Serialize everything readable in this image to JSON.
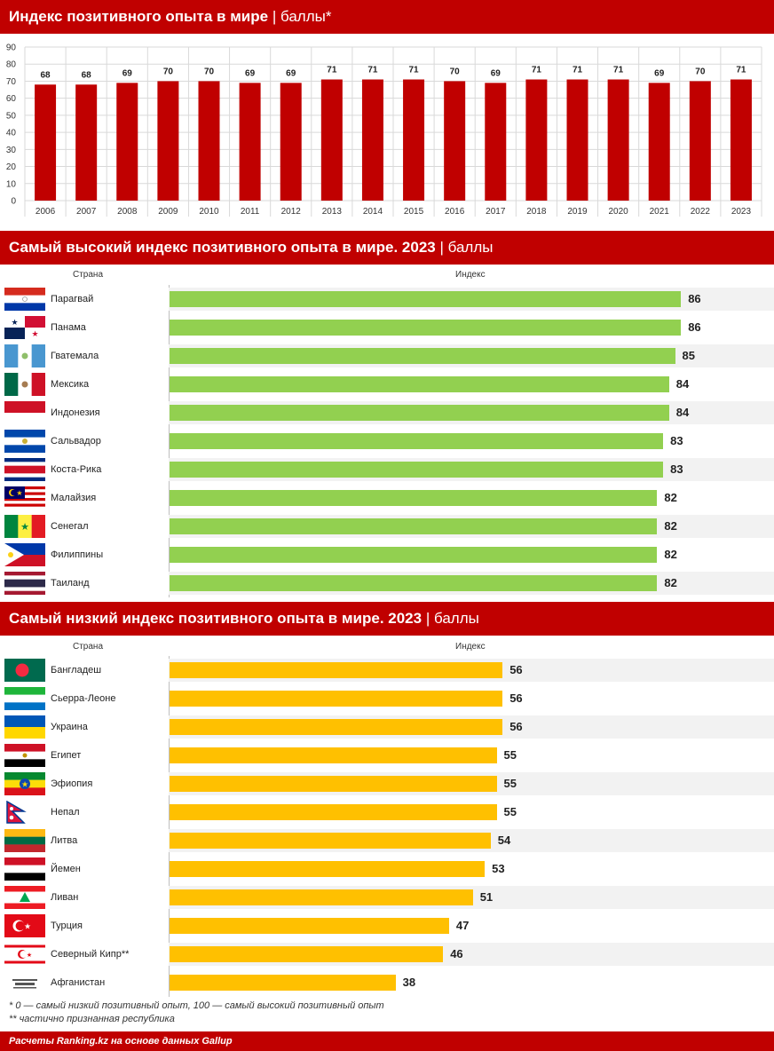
{
  "sections": {
    "s1": {
      "title_bold": "Индекс позитивного опыта в мире",
      "title_unit": "баллы*"
    },
    "s2": {
      "title_bold": "Самый высокий индекс позитивного опыта в мире. 2023",
      "title_unit": "баллы"
    },
    "s3": {
      "title_bold": "Самый низкий индекс позитивного опыта в мире. 2023",
      "title_unit": "баллы"
    }
  },
  "headers": {
    "country": "Страна",
    "index": "Индекс"
  },
  "colors": {
    "brand": "#c00000",
    "high": "#92d050",
    "low": "#ffc000"
  },
  "chart_data": [
    {
      "type": "bar",
      "categories": [
        "2006",
        "2007",
        "2008",
        "2009",
        "2010",
        "2011",
        "2012",
        "2013",
        "2014",
        "2015",
        "2016",
        "2017",
        "2018",
        "2019",
        "2020",
        "2021",
        "2022",
        "2023"
      ],
      "values": [
        68,
        68,
        69,
        70,
        70,
        69,
        69,
        71,
        71,
        71,
        70,
        69,
        71,
        71,
        71,
        69,
        70,
        71
      ],
      "yticks": [
        0,
        10,
        20,
        30,
        40,
        50,
        60,
        70,
        80,
        90
      ],
      "ylim": [
        0,
        90
      ],
      "grid": true
    },
    {
      "type": "bar",
      "orientation": "horizontal",
      "categories": [
        "Парагвай",
        "Панама",
        "Гватемала",
        "Мексика",
        "Индонезия",
        "Сальвадор",
        "Коста-Рика",
        "Малайзия",
        "Сенегал",
        "Филиппины",
        "Таиланд"
      ],
      "values": [
        86,
        86,
        85,
        84,
        84,
        83,
        83,
        82,
        82,
        82,
        82
      ],
      "flags": [
        "paraguay",
        "panama",
        "guatemala",
        "mexico",
        "indonesia",
        "salvador",
        "costa-rica",
        "malaysia",
        "senegal",
        "philippines",
        "thailand"
      ],
      "xlim": [
        0,
        100
      ]
    },
    {
      "type": "bar",
      "orientation": "horizontal",
      "categories": [
        "Бангладеш",
        "Сьерра-Леоне",
        "Украина",
        "Египет",
        "Эфиопия",
        "Непал",
        "Литва",
        "Йемен",
        "Ливан",
        "Турция",
        "Северный Кипр**",
        "Афганистан"
      ],
      "values": [
        56,
        56,
        56,
        55,
        55,
        55,
        54,
        53,
        51,
        47,
        46,
        38
      ],
      "flags": [
        "bangladesh",
        "sierra-leone",
        "ukraine",
        "egypt",
        "ethiopia",
        "nepal",
        "lithuania",
        "yemen",
        "lebanon",
        "turkey",
        "north-cyprus",
        "afghanistan"
      ],
      "xlim": [
        0,
        100
      ]
    }
  ],
  "notes": {
    "n1": "* 0 — самый низкий позитивный опыт, 100 — самый высокий позитивный опыт",
    "n2": "** частично признанная республика"
  },
  "footer": "Расчеты Ranking.kz на основе данных Gallup"
}
